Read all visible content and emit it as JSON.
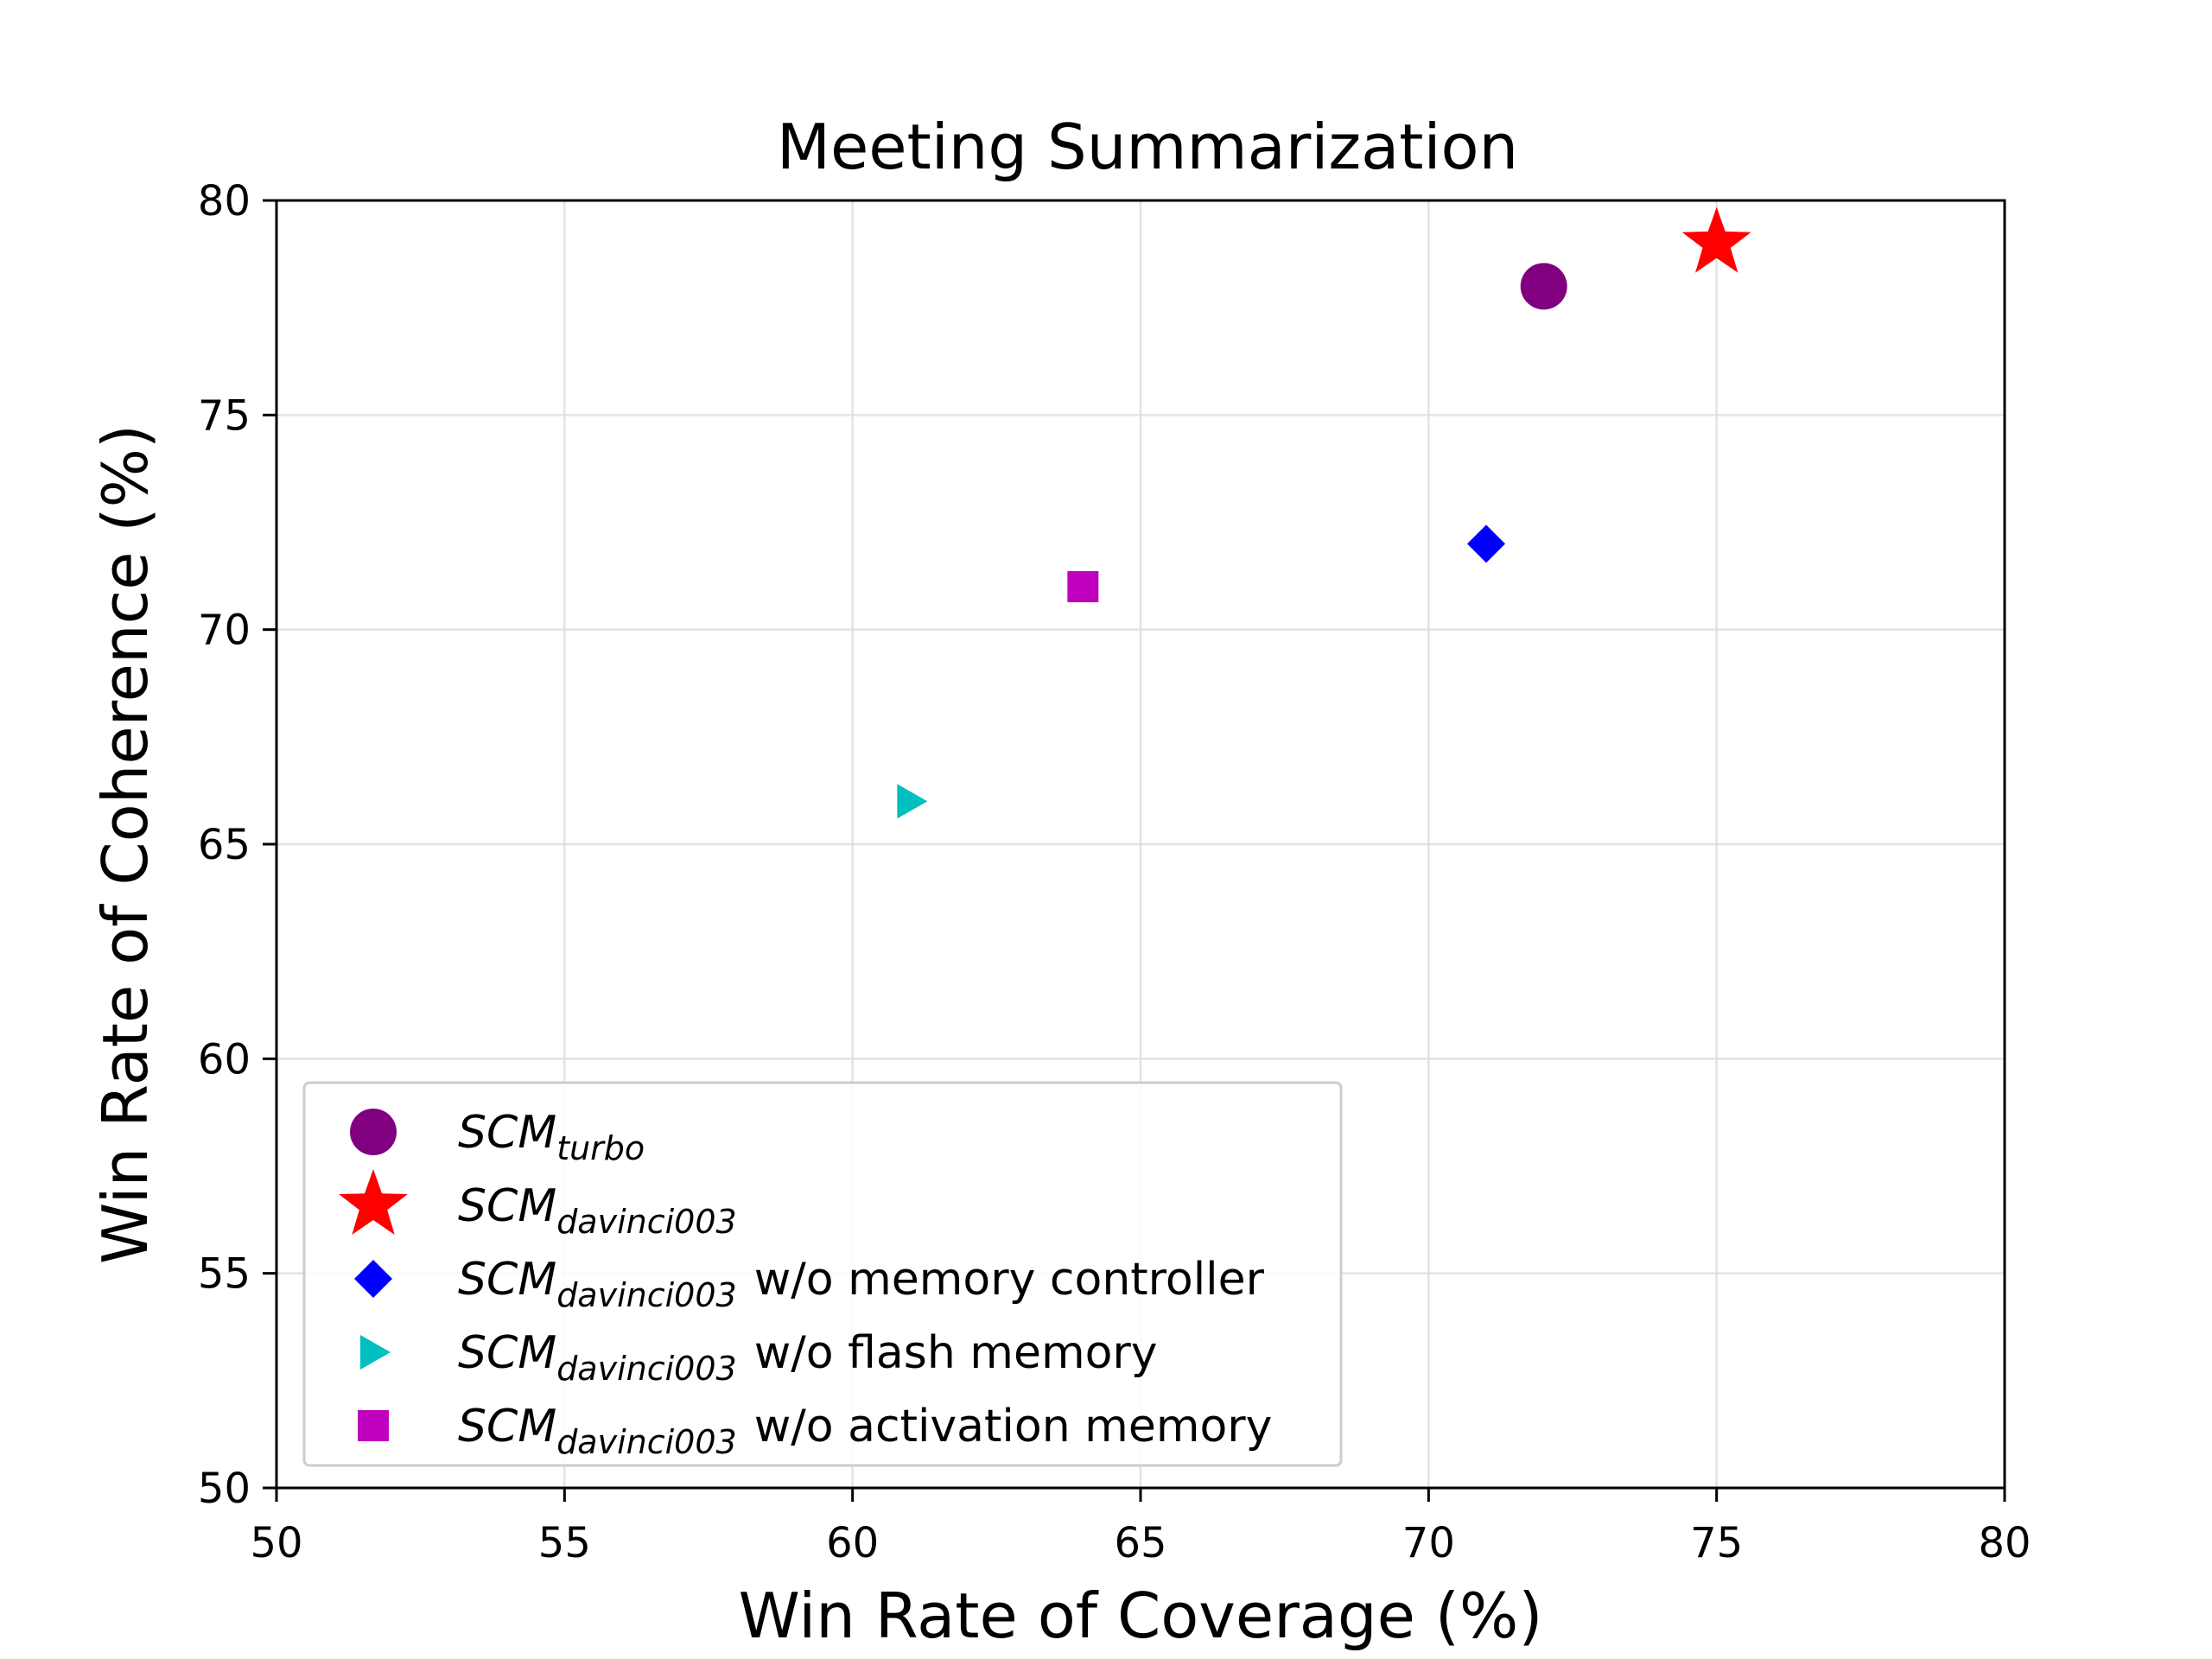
{
  "chart_data": {
    "type": "scatter",
    "title": "Meeting Summarization",
    "xlabel": "Win Rate of Coverage (%)",
    "ylabel": "Win Rate of Coherence (%)",
    "xlim": [
      50,
      80
    ],
    "ylim": [
      50,
      80
    ],
    "xticks": [
      "50",
      "55",
      "60",
      "65",
      "70",
      "75",
      "80"
    ],
    "yticks": [
      "50",
      "55",
      "60",
      "65",
      "70",
      "75",
      "80"
    ],
    "grid": true,
    "legend_position": "lower-left",
    "series": [
      {
        "name_main": "SCM",
        "name_sub": "turbo",
        "name_suffix": "",
        "marker": "circle",
        "color": "#800080",
        "x": 72,
        "y": 78
      },
      {
        "name_main": "SCM",
        "name_sub": "davinci003",
        "name_suffix": "",
        "marker": "star",
        "color": "#ff0000",
        "x": 75,
        "y": 79
      },
      {
        "name_main": "SCM",
        "name_sub": "davinci003",
        "name_suffix": "w/o memory controller",
        "marker": "diamond",
        "color": "#0000ff",
        "x": 71,
        "y": 72
      },
      {
        "name_main": "SCM",
        "name_sub": "davinci003",
        "name_suffix": "w/o flash memory",
        "marker": "triangle-right",
        "color": "#00bfbf",
        "x": 61,
        "y": 66
      },
      {
        "name_main": "SCM",
        "name_sub": "davinci003",
        "name_suffix": "w/o activation memory",
        "marker": "square",
        "color": "#bf00bf",
        "x": 64,
        "y": 71
      }
    ]
  }
}
